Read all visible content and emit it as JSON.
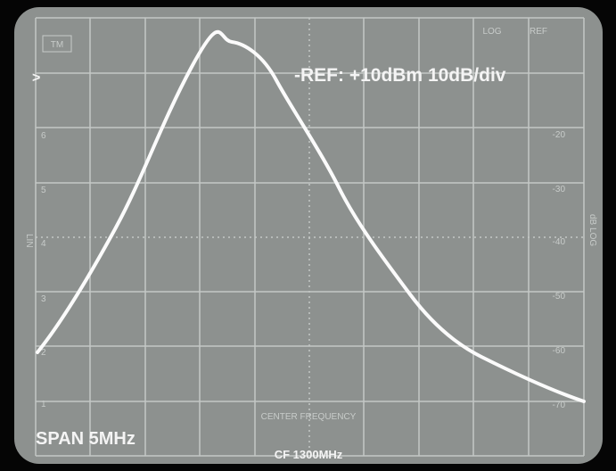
{
  "screen": {
    "badge": "TM",
    "reference": "-REF: +10dBm 10dB/div",
    "span": "SPAN 5MHz",
    "center_frequency": "CF 1300MHz",
    "center_label": "CENTER FREQUENCY",
    "scale_mode": "LOG",
    "ref_label": "REF",
    "left_labels": [
      ">",
      "6",
      "5",
      "4",
      "3",
      "2",
      "1"
    ],
    "right_labels": [
      "-20",
      "-30",
      "-40",
      "-50",
      "-60",
      "-70"
    ],
    "left_axis_label": "LIN",
    "right_axis_label": "dB LOG"
  }
}
